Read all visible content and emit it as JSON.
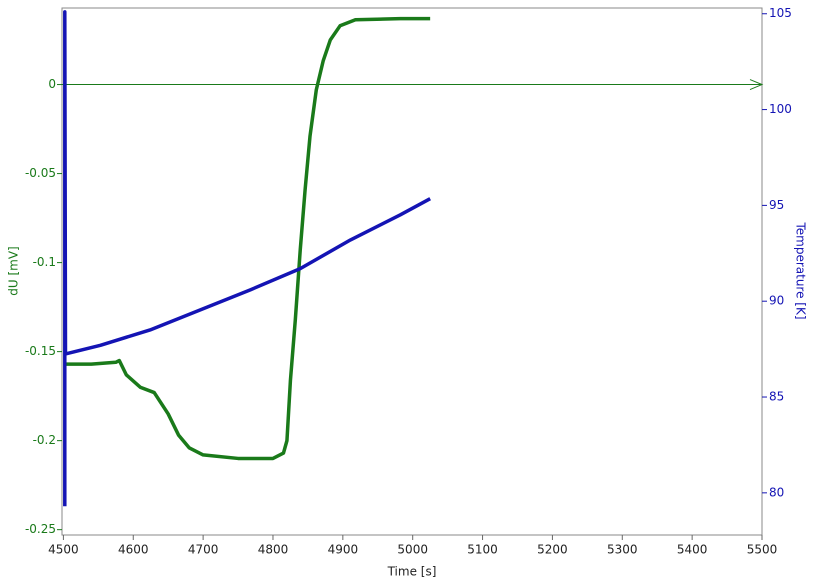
{
  "chart_data": {
    "type": "line",
    "x_label": "Time [s]",
    "y_label": "dU [mV]",
    "y2_label": "Temperature [K]",
    "xlim": [
      4498,
      5500
    ],
    "xticks": [
      4500,
      4600,
      4700,
      4800,
      4900,
      5000,
      5100,
      5200,
      5300,
      5400,
      5500
    ],
    "ylim": [
      -0.253,
      0.043
    ],
    "yticks": [
      -0.25,
      -0.2,
      -0.15,
      -0.1,
      -0.05,
      0
    ],
    "y2lim": [
      77.8,
      105.3
    ],
    "y2ticks": [
      80,
      85,
      90,
      95,
      100,
      105
    ],
    "y_color": "#1a7a1a",
    "y2_color": "#1414b4",
    "series": [
      {
        "name": "dU",
        "color": "#1a7a1a",
        "axis": "y",
        "x": [
          4502,
          4540,
          4575,
          4580,
          4590,
          4610,
          4630,
          4650,
          4665,
          4680,
          4700,
          4750,
          4800,
          4815,
          4820,
          4825,
          4832,
          4839,
          4846,
          4853,
          4862,
          4872,
          4882,
          4896,
          4918,
          4982,
          5025
        ],
        "values": [
          -0.157,
          -0.157,
          -0.156,
          -0.155,
          -0.163,
          -0.17,
          -0.173,
          -0.185,
          -0.197,
          -0.204,
          -0.208,
          -0.21,
          -0.21,
          -0.207,
          -0.2,
          -0.166,
          -0.132,
          -0.093,
          -0.059,
          -0.029,
          -0.003,
          0.0135,
          0.025,
          0.033,
          0.0364,
          0.037,
          0.037
        ]
      },
      {
        "name": "Temperature",
        "color": "#1414b4",
        "axis": "y2",
        "x": [
          4502,
          4502,
          4503,
          4553,
          4624,
          4696,
          4768,
          4839,
          4911,
          4982,
          5025
        ],
        "values": [
          79.3,
          105.1,
          87.25,
          87.7,
          88.5,
          89.55,
          90.6,
          91.7,
          93.2,
          94.5,
          95.35
        ]
      }
    ]
  }
}
